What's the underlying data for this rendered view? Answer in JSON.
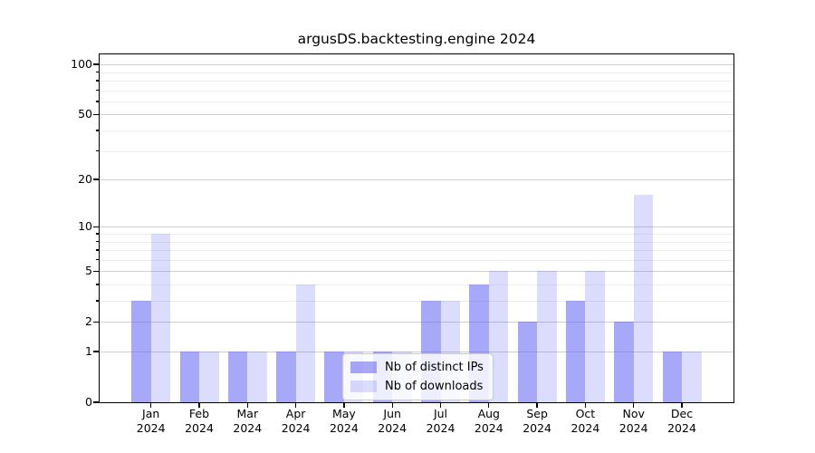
{
  "title": "argusDS.backtesting.engine 2024",
  "chart_data": {
    "type": "bar",
    "categories": [
      "Jan 2024",
      "Feb 2024",
      "Mar 2024",
      "Apr 2024",
      "May 2024",
      "Jun 2024",
      "Jul 2024",
      "Aug 2024",
      "Sep 2024",
      "Oct 2024",
      "Nov 2024",
      "Dec 2024"
    ],
    "series": [
      {
        "name": "Nb of distinct IPs",
        "values": [
          3,
          1,
          1,
          1,
          1,
          1,
          3,
          4,
          2,
          3,
          2,
          1
        ],
        "fill": "rgba(97,97,242,0.55)",
        "rendered_hex": "#a8a8f8"
      },
      {
        "name": "Nb of downloads",
        "values": [
          9,
          1,
          1,
          4,
          1,
          1,
          3,
          5,
          5,
          5,
          16,
          1
        ],
        "fill": "rgba(97,97,242,0.22)",
        "rendered_hex": "#dcdcf8"
      }
    ],
    "yscale": "log1p",
    "ylim": [
      0,
      115
    ],
    "y_major_ticks": [
      0,
      1,
      2,
      5,
      10,
      20,
      50,
      100
    ],
    "y_minor_gridlines": [
      3,
      4,
      6,
      7,
      8,
      9,
      30,
      40,
      60,
      70,
      80,
      90
    ],
    "grid": "both",
    "legend_position": "lower center",
    "xlabel": "",
    "ylabel": ""
  },
  "colors": {
    "grid_major": "#cfcfcf",
    "grid_minor": "#ececec",
    "axis": "#000000",
    "background": "#ffffff"
  }
}
